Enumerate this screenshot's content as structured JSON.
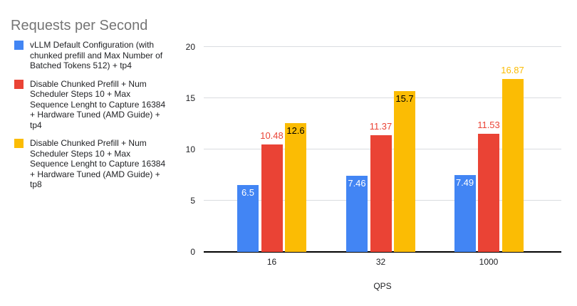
{
  "chart_data": {
    "type": "bar",
    "title": "Requests per Second",
    "xlabel": "QPS",
    "ylabel": "",
    "ylim": [
      0,
      20
    ],
    "yticks": [
      0,
      5,
      10,
      15,
      20
    ],
    "categories": [
      "16",
      "32",
      "1000"
    ],
    "series": [
      {
        "name": "vLLM Default Configuration (with chunked prefill and Max Number of Batched Tokens 512) + tp4",
        "color": "#4285F4",
        "values": [
          6.5,
          7.46,
          7.49
        ],
        "value_labels": [
          "6.5",
          "7.46",
          "7.49"
        ],
        "label_placement": [
          "inside",
          "inside",
          "inside"
        ],
        "label_color": [
          "#ffffff",
          "#ffffff",
          "#ffffff"
        ]
      },
      {
        "name": "Disable Chunked Prefill + Num Scheduler Steps 10 + Max Sequence Lenght to Capture 16384 + Hardware Tuned (AMD Guide) + tp4",
        "color": "#EA4335",
        "values": [
          10.48,
          11.37,
          11.53
        ],
        "value_labels": [
          "10.48",
          "11.37",
          "11.53"
        ],
        "label_placement": [
          "above",
          "above",
          "above"
        ],
        "label_color": [
          "#EA4335",
          "#EA4335",
          "#EA4335"
        ]
      },
      {
        "name": "Disable Chunked Prefill + Num Scheduler Steps 10 + Max Sequence Lenght to Capture 16384 + Hardware Tuned (AMD Guide) + tp8",
        "color": "#FBBC04",
        "values": [
          12.6,
          15.7,
          16.87
        ],
        "value_labels": [
          "12.6",
          "15.7",
          "16.87"
        ],
        "label_placement": [
          "inside",
          "inside",
          "above"
        ],
        "label_color": [
          "#000000",
          "#000000",
          "#FBBC04"
        ]
      }
    ],
    "legend_position": "left",
    "grid": true,
    "colors": {
      "title": "#757575",
      "axis_text": "#202124",
      "gridline": "#DADCE0",
      "axis_line": "#000000",
      "background": "#FFFFFF"
    }
  }
}
